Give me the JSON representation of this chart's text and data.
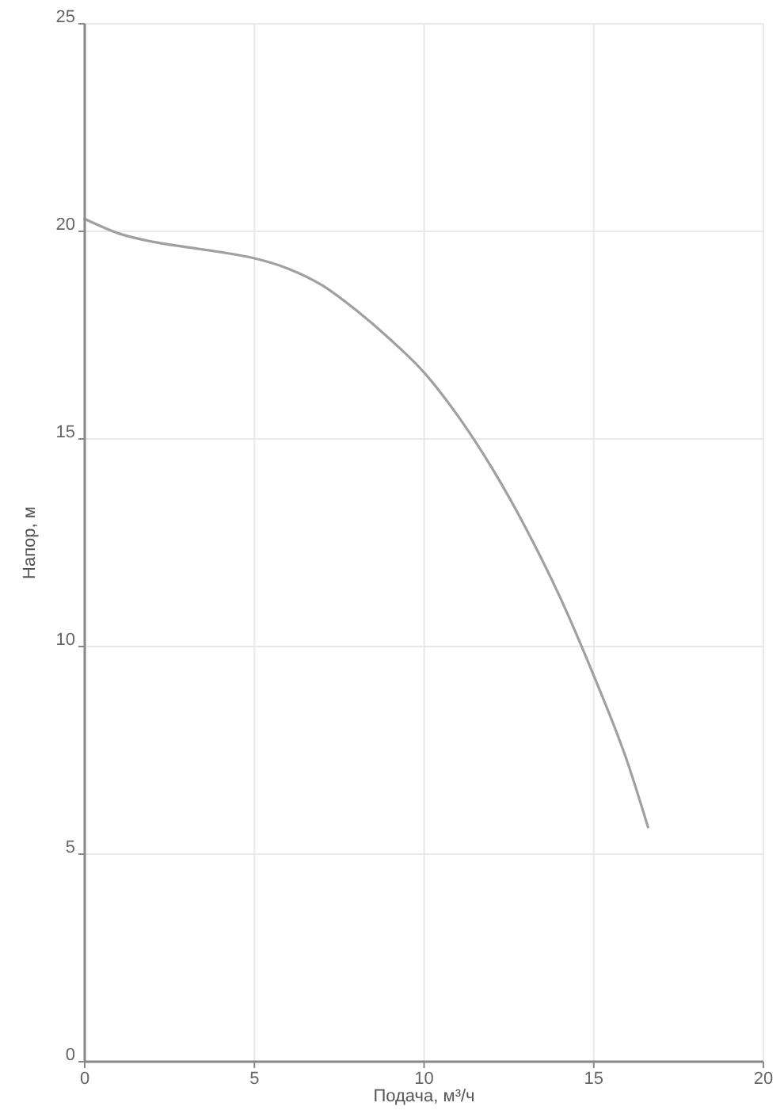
{
  "chart_data": {
    "type": "line",
    "xlabel": "Подача, м³/ч",
    "ylabel": "Напор, м",
    "xlim": [
      0,
      20
    ],
    "ylim": [
      0,
      25
    ],
    "xticks": [
      0,
      5,
      10,
      15,
      20
    ],
    "yticks": [
      0,
      5,
      10,
      15,
      20,
      25
    ],
    "grid": true,
    "x": [
      0,
      1,
      2,
      3,
      4,
      5,
      6,
      7,
      8,
      9,
      10,
      11,
      12,
      13,
      14,
      15,
      16,
      16.6
    ],
    "series": [
      {
        "color": "#a0a0a0",
        "values": [
          20.3,
          19.95,
          19.75,
          19.62,
          19.5,
          19.35,
          19.1,
          18.7,
          18.1,
          17.4,
          16.6,
          15.55,
          14.3,
          12.85,
          11.2,
          9.3,
          7.2,
          5.65
        ]
      }
    ]
  }
}
